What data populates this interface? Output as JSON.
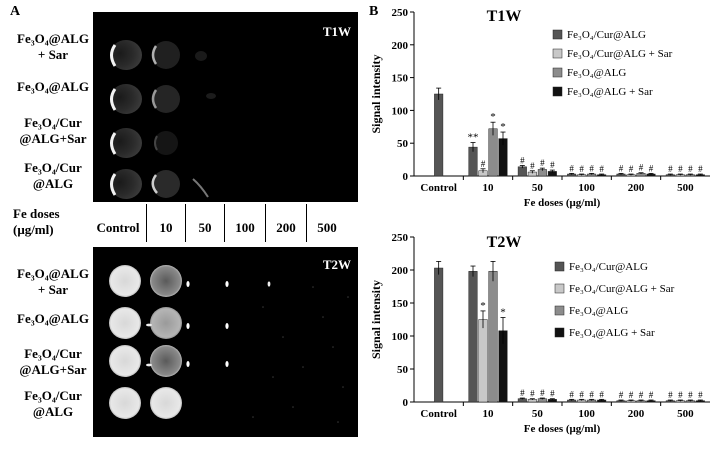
{
  "panel_a": {
    "letter": "A",
    "t1w": {
      "title": "T1W",
      "rows": [
        {
          "line1": "Fe₃O₄@ALG",
          "line2": "+ Sar"
        },
        {
          "line1": "Fe₃O₄@ALG",
          "line2": ""
        },
        {
          "line1": "Fe₃O₄/Cur",
          "line2": "@ALG+Sar"
        },
        {
          "line1": "Fe₃O₄/Cur",
          "line2": "@ALG"
        }
      ]
    },
    "dose_axis": {
      "line1": "Fe doses",
      "line2": "(μg/ml)"
    },
    "doses": [
      "Control",
      "10",
      "50",
      "100",
      "200",
      "500"
    ],
    "t2w": {
      "title": "T2W",
      "rows": [
        {
          "line1": "Fe₃O₄@ALG",
          "line2": "+ Sar"
        },
        {
          "line1": "Fe₃O₄@ALG",
          "line2": ""
        },
        {
          "line1": "Fe₃O₄/Cur",
          "line2": "@ALG+Sar"
        },
        {
          "line1": "Fe₃O₄/Cur",
          "line2": "@ALG"
        }
      ]
    }
  },
  "panel_b": {
    "letter": "B"
  },
  "colors": {
    "series": [
      "#555555",
      "#c8c8c8",
      "#8c8c8c",
      "#111111"
    ],
    "mri_bg": "#000000"
  },
  "chart_data": [
    {
      "type": "bar",
      "title": "T1W",
      "xlabel": "Fe doses (μg/ml)",
      "ylabel": "Signal intensity",
      "ylim": [
        0,
        250
      ],
      "yticks": [
        0,
        50,
        100,
        150,
        200,
        250
      ],
      "categories": [
        "Control",
        "10",
        "50",
        "100",
        "200",
        "500"
      ],
      "legend_position": "top-right",
      "series": [
        {
          "name": "Fe₃O₄/Cur@ALG",
          "values": [
            125,
            44,
            14,
            3,
            3,
            2
          ],
          "errors": [
            9,
            7,
            2,
            1,
            1,
            1
          ],
          "marks": [
            "",
            "**",
            "#",
            "#",
            "#",
            "#"
          ]
        },
        {
          "name": "Fe₃O₄/Cur@ALG + Sar",
          "values": [
            null,
            8,
            6,
            2,
            2,
            2
          ],
          "errors": [
            0,
            3,
            2,
            1,
            1,
            1
          ],
          "marks": [
            "",
            "#",
            "#",
            "#",
            "#",
            "#"
          ]
        },
        {
          "name": "Fe₃O₄@ALG",
          "values": [
            null,
            72,
            10,
            3,
            4,
            2
          ],
          "errors": [
            0,
            10,
            2,
            1,
            1,
            1
          ],
          "marks": [
            "",
            "*",
            "#",
            "#",
            "#",
            "#"
          ]
        },
        {
          "name": "Fe₃O₄@ALG + Sar",
          "values": [
            null,
            57,
            7,
            2,
            3,
            2
          ],
          "errors": [
            0,
            10,
            2,
            1,
            1,
            1
          ],
          "marks": [
            "",
            "*",
            "#",
            "#",
            "#",
            "#"
          ]
        }
      ]
    },
    {
      "type": "bar",
      "title": "T2W",
      "xlabel": "Fe doses (μg/ml)",
      "ylabel": "Signal intensity",
      "ylim": [
        0,
        250
      ],
      "yticks": [
        0,
        50,
        100,
        150,
        200,
        250
      ],
      "categories": [
        "Control",
        "10",
        "50",
        "100",
        "200",
        "500"
      ],
      "legend_position": "right",
      "series": [
        {
          "name": "Fe₃O₄/Cur@ALG",
          "values": [
            203,
            198,
            5,
            3,
            2,
            2
          ],
          "errors": [
            10,
            8,
            1,
            1,
            1,
            1
          ],
          "marks": [
            "",
            "",
            "#",
            "#",
            "#",
            "#"
          ]
        },
        {
          "name": "Fe₃O₄/Cur@ALG + Sar",
          "values": [
            null,
            125,
            4,
            3,
            2,
            2
          ],
          "errors": [
            0,
            13,
            1,
            1,
            1,
            1
          ],
          "marks": [
            "",
            "*",
            "#",
            "#",
            "#",
            "#"
          ]
        },
        {
          "name": "Fe₃O₄@ALG",
          "values": [
            null,
            198,
            5,
            3,
            2,
            2
          ],
          "errors": [
            0,
            15,
            1,
            1,
            1,
            1
          ],
          "marks": [
            "",
            "",
            "#",
            "#",
            "#",
            "#"
          ]
        },
        {
          "name": "Fe₃O₄@ALG + Sar",
          "values": [
            null,
            108,
            4,
            3,
            2,
            2
          ],
          "errors": [
            0,
            20,
            1,
            1,
            1,
            1
          ],
          "marks": [
            "",
            "*",
            "#",
            "#",
            "#",
            "#"
          ]
        }
      ]
    }
  ]
}
